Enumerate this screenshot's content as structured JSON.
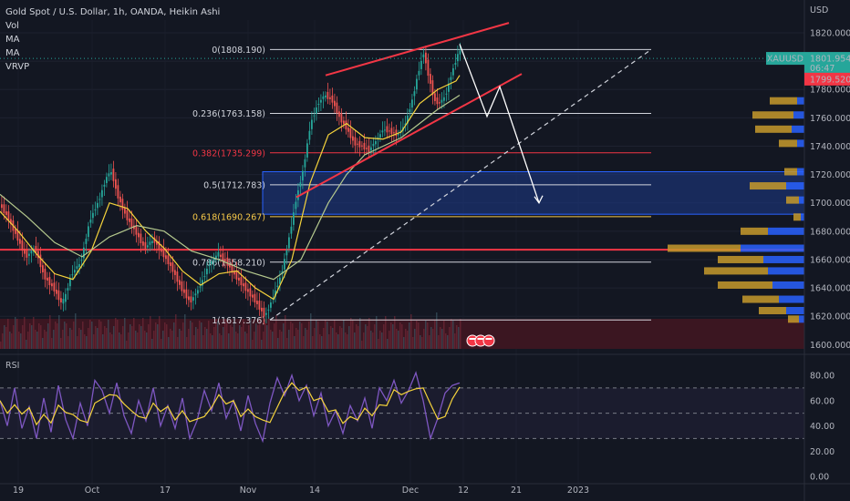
{
  "legend": {
    "symbol": "Gold Spot / U.S. Dollar, 1h, OANDA, Heikin Ashi",
    "indicators": [
      "Vol",
      "MA",
      "MA",
      "VRVP"
    ]
  },
  "price_axis": {
    "currency": "USD",
    "ticks": [
      "1820.000",
      "1800.000",
      "1780.000",
      "1760.000",
      "1740.000",
      "1720.000",
      "1700.000",
      "1680.000",
      "1660.000",
      "1640.000",
      "1620.000",
      "1600.000"
    ]
  },
  "rsi_axis": {
    "ticks": [
      "80.00",
      "60.00",
      "40.00",
      "20.00",
      "0.00"
    ]
  },
  "rsi_label": "RSI",
  "time_axis": [
    "19",
    "Oct",
    "17",
    "Nov",
    "14",
    "Dec",
    "12",
    "21",
    "2023"
  ],
  "badges": {
    "symbol": "XAUUSD",
    "price": "1801.954",
    "countdown": "06:47",
    "level": "1799.520"
  },
  "colors": {
    "background": "#131722",
    "fib_white": "#d1d4dc",
    "fib_red": "#f23645",
    "fib_yellow": "#f7c948",
    "zone_blue": "#1e3a8a",
    "ma_fast": "#f5d33c",
    "ma_slow": "#b5c98e",
    "rsi": "#7e57c2",
    "rsi_ma": "#f5d33c",
    "candle_up": "#26a69a",
    "candle_down": "#ef5350"
  },
  "chart_data": {
    "type": "candlestick",
    "title": "Gold Spot / U.S. Dollar, 1h, OANDA, Heikin Ashi",
    "y_range": [
      1597,
      1829
    ],
    "fib_levels": [
      {
        "ratio": "0",
        "price": 1808.19,
        "label": "0(1808.190)"
      },
      {
        "ratio": "0.236",
        "price": 1763.158,
        "label": "0.236(1763.158)"
      },
      {
        "ratio": "0.382",
        "price": 1735.299,
        "label": "0.382(1735.299)"
      },
      {
        "ratio": "0.5",
        "price": 1712.783,
        "label": "0.5(1712.783)"
      },
      {
        "ratio": "0.618",
        "price": 1690.267,
        "label": "0.618(1690.267)"
      },
      {
        "ratio": "0.786",
        "price": 1658.21,
        "label": "0.786(1658.210)"
      },
      {
        "ratio": "1",
        "price": 1617.376,
        "label": "1(1617.376)"
      }
    ],
    "horizontal_line": 1667,
    "zone": [
      1692,
      1722
    ],
    "price_path": [
      [
        0,
        1700
      ],
      [
        10,
        1690
      ],
      [
        20,
        1676
      ],
      [
        30,
        1662
      ],
      [
        40,
        1668
      ],
      [
        50,
        1648
      ],
      [
        60,
        1640
      ],
      [
        70,
        1628
      ],
      [
        80,
        1650
      ],
      [
        90,
        1658
      ],
      [
        100,
        1688
      ],
      [
        110,
        1702
      ],
      [
        118,
        1718
      ],
      [
        124,
        1722
      ],
      [
        130,
        1706
      ],
      [
        140,
        1690
      ],
      [
        150,
        1680
      ],
      [
        160,
        1668
      ],
      [
        170,
        1674
      ],
      [
        180,
        1664
      ],
      [
        190,
        1654
      ],
      [
        200,
        1640
      ],
      [
        210,
        1630
      ],
      [
        220,
        1640
      ],
      [
        230,
        1656
      ],
      [
        240,
        1664
      ],
      [
        250,
        1658
      ],
      [
        260,
        1648
      ],
      [
        270,
        1640
      ],
      [
        280,
        1632
      ],
      [
        292,
        1620
      ],
      [
        300,
        1632
      ],
      [
        310,
        1650
      ],
      [
        318,
        1674
      ],
      [
        326,
        1702
      ],
      [
        334,
        1724
      ],
      [
        342,
        1756
      ],
      [
        350,
        1770
      ],
      [
        358,
        1776
      ],
      [
        366,
        1772
      ],
      [
        374,
        1760
      ],
      [
        382,
        1752
      ],
      [
        390,
        1742
      ],
      [
        398,
        1740
      ],
      [
        406,
        1737
      ],
      [
        414,
        1744
      ],
      [
        422,
        1752
      ],
      [
        430,
        1750
      ],
      [
        438,
        1748
      ],
      [
        446,
        1756
      ],
      [
        454,
        1774
      ],
      [
        460,
        1792
      ],
      [
        466,
        1806
      ],
      [
        472,
        1788
      ],
      [
        478,
        1772
      ],
      [
        484,
        1770
      ],
      [
        490,
        1776
      ],
      [
        496,
        1790
      ],
      [
        504,
        1806
      ]
    ],
    "ma_fast": [
      [
        0,
        1694
      ],
      [
        20,
        1680
      ],
      [
        40,
        1664
      ],
      [
        60,
        1650
      ],
      [
        80,
        1646
      ],
      [
        100,
        1666
      ],
      [
        120,
        1700
      ],
      [
        140,
        1696
      ],
      [
        160,
        1680
      ],
      [
        180,
        1668
      ],
      [
        200,
        1652
      ],
      [
        220,
        1642
      ],
      [
        240,
        1650
      ],
      [
        260,
        1652
      ],
      [
        280,
        1640
      ],
      [
        300,
        1632
      ],
      [
        320,
        1660
      ],
      [
        340,
        1714
      ],
      [
        360,
        1748
      ],
      [
        380,
        1756
      ],
      [
        400,
        1746
      ],
      [
        420,
        1745
      ],
      [
        440,
        1750
      ],
      [
        460,
        1770
      ],
      [
        480,
        1780
      ],
      [
        500,
        1786
      ],
      [
        504,
        1790
      ]
    ],
    "ma_slow": [
      [
        0,
        1706
      ],
      [
        30,
        1690
      ],
      [
        60,
        1672
      ],
      [
        90,
        1662
      ],
      [
        120,
        1676
      ],
      [
        150,
        1684
      ],
      [
        180,
        1680
      ],
      [
        210,
        1666
      ],
      [
        240,
        1660
      ],
      [
        270,
        1652
      ],
      [
        300,
        1646
      ],
      [
        330,
        1660
      ],
      [
        360,
        1700
      ],
      [
        380,
        1720
      ],
      [
        400,
        1734
      ],
      [
        420,
        1740
      ],
      [
        440,
        1746
      ],
      [
        460,
        1756
      ],
      [
        480,
        1766
      ],
      [
        504,
        1776
      ]
    ],
    "channel_upper": [
      [
        357,
        1790
      ],
      [
        558,
        1827
      ]
    ],
    "channel_lower": [
      [
        325,
        1704
      ],
      [
        572,
        1791
      ]
    ],
    "dashed_trend": [
      [
        296,
        1617.376
      ],
      [
        714,
        1808.19
      ]
    ],
    "projection": [
      [
        504,
        1812
      ],
      [
        534,
        1761
      ],
      [
        548,
        1782
      ],
      [
        591,
        1700
      ]
    ],
    "rsi": [
      [
        0,
        60
      ],
      [
        8,
        40
      ],
      [
        16,
        70
      ],
      [
        24,
        38
      ],
      [
        32,
        55
      ],
      [
        40,
        30
      ],
      [
        48,
        62
      ],
      [
        56,
        35
      ],
      [
        64,
        72
      ],
      [
        72,
        45
      ],
      [
        80,
        30
      ],
      [
        88,
        58
      ],
      [
        96,
        40
      ],
      [
        104,
        76
      ],
      [
        112,
        68
      ],
      [
        120,
        50
      ],
      [
        128,
        74
      ],
      [
        136,
        48
      ],
      [
        144,
        34
      ],
      [
        152,
        60
      ],
      [
        160,
        44
      ],
      [
        168,
        70
      ],
      [
        176,
        40
      ],
      [
        184,
        56
      ],
      [
        192,
        38
      ],
      [
        200,
        62
      ],
      [
        208,
        30
      ],
      [
        216,
        44
      ],
      [
        224,
        68
      ],
      [
        232,
        52
      ],
      [
        240,
        74
      ],
      [
        248,
        46
      ],
      [
        256,
        60
      ],
      [
        264,
        36
      ],
      [
        272,
        64
      ],
      [
        280,
        42
      ],
      [
        288,
        28
      ],
      [
        296,
        58
      ],
      [
        304,
        78
      ],
      [
        312,
        64
      ],
      [
        320,
        80
      ],
      [
        328,
        60
      ],
      [
        336,
        72
      ],
      [
        344,
        48
      ],
      [
        352,
        66
      ],
      [
        360,
        40
      ],
      [
        368,
        52
      ],
      [
        376,
        34
      ],
      [
        384,
        56
      ],
      [
        392,
        44
      ],
      [
        400,
        62
      ],
      [
        408,
        38
      ],
      [
        416,
        70
      ],
      [
        424,
        60
      ],
      [
        432,
        76
      ],
      [
        440,
        58
      ],
      [
        448,
        68
      ],
      [
        456,
        82
      ],
      [
        464,
        60
      ],
      [
        472,
        30
      ],
      [
        480,
        46
      ],
      [
        488,
        66
      ],
      [
        496,
        72
      ],
      [
        504,
        74
      ]
    ]
  }
}
